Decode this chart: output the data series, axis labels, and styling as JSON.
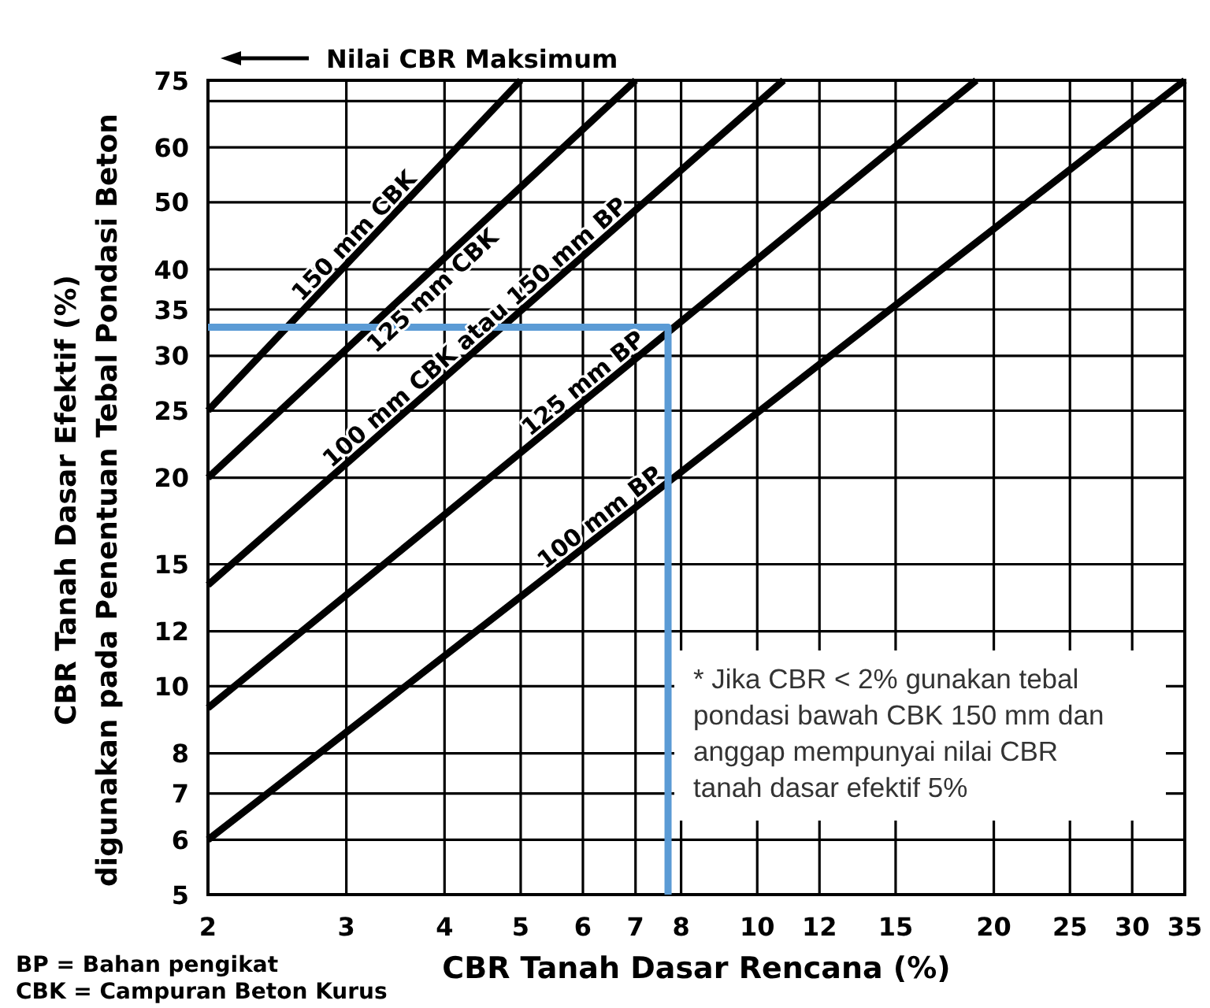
{
  "chart_data": {
    "type": "line",
    "xlabel": "CBR Tanah Dasar Rencana (%)",
    "ylabel": "CBR Tanah Dasar Efektif (%)\ndigunakan pada Penentuan Tebal Pondasi Beton",
    "log": "xy",
    "xlim": [
      2,
      35
    ],
    "ylim": [
      5,
      75
    ],
    "xticks": [
      2,
      3,
      4,
      5,
      6,
      7,
      8,
      10,
      12,
      15,
      20,
      25,
      30,
      35
    ],
    "yticks": [
      5,
      6,
      7,
      8,
      10,
      12,
      15,
      20,
      25,
      30,
      35,
      40,
      50,
      60,
      {
        "value": 70,
        "label": null
      },
      75
    ],
    "grid": true,
    "series": [
      {
        "name": "150 mm CBK",
        "color": "#000000",
        "x": [
          2,
          5
        ],
        "values": [
          25,
          75
        ]
      },
      {
        "name": "125 mm CBK",
        "color": "#000000",
        "x": [
          2,
          7
        ],
        "values": [
          20,
          75
        ]
      },
      {
        "name": "100 mm CBK atau 150 mm BP",
        "color": "#000000",
        "x": [
          2,
          10.8
        ],
        "values": [
          14,
          75
        ]
      },
      {
        "name": "125 mm BP",
        "color": "#000000",
        "x": [
          2,
          19
        ],
        "values": [
          9.3,
          75
        ]
      },
      {
        "name": "100 mm BP",
        "color": "#000000",
        "x": [
          2,
          35
        ],
        "values": [
          6,
          75
        ]
      },
      {
        "color": "#5b9bd5",
        "x": [
          2,
          7.7,
          7.7
        ],
        "values": [
          33,
          33,
          5
        ]
      }
    ],
    "annotations": [
      "Nilai CBR Maksimum",
      "* Jika CBR < 2% gunakan tebal pondasi bawah CBK 150 mm dan anggap mempunyai nilai CBR tanah dasar efektif 5%",
      "BP = Bahan pengikat",
      "CBK = Campuran Beton Kurus"
    ]
  }
}
